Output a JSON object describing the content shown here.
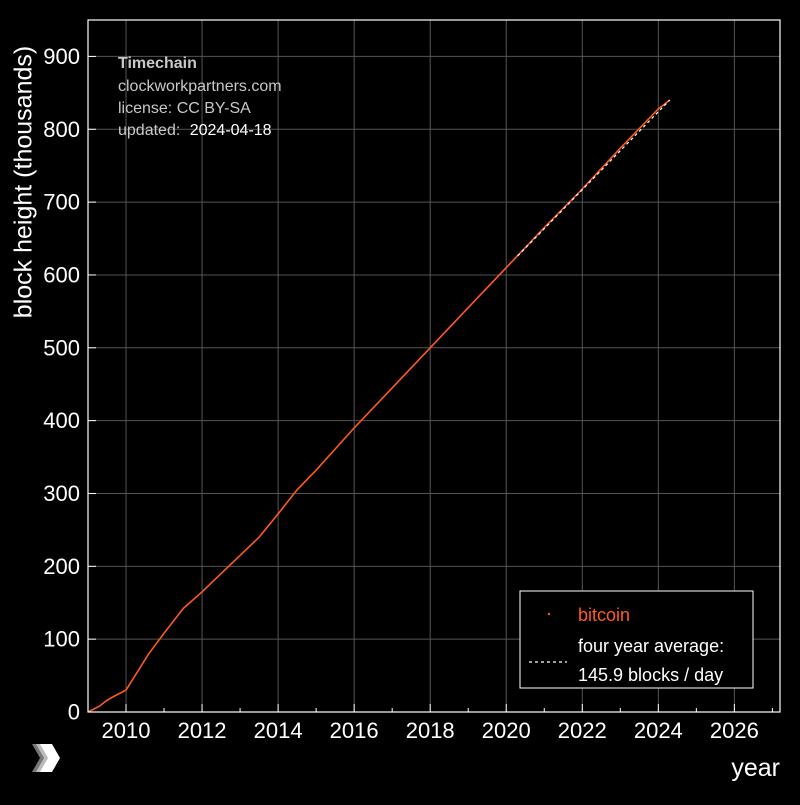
{
  "chart_data": {
    "type": "line",
    "title": "Timechain",
    "xlabel": "year",
    "ylabel": "block height (thousands)",
    "xlim": [
      2009.0,
      2027.2
    ],
    "ylim": [
      0,
      950
    ],
    "x_ticks": [
      2010,
      2012,
      2014,
      2016,
      2018,
      2020,
      2022,
      2024,
      2026
    ],
    "y_ticks": [
      0,
      100,
      200,
      300,
      400,
      500,
      600,
      700,
      800,
      900
    ],
    "grid": true,
    "info": {
      "title": "Timechain",
      "website": "clockworkpartners.com",
      "license": "license: CC BY-SA",
      "updated_label": "updated:",
      "updated_value": "2024-04-18"
    },
    "series": [
      {
        "name": "bitcoin",
        "color": "#ff5a1f",
        "x": [
          2009.0,
          2009.3,
          2009.5,
          2009.7,
          2010.0,
          2010.3,
          2010.6,
          2011.0,
          2011.5,
          2012.0,
          2012.5,
          2013.0,
          2013.5,
          2014.0,
          2014.5,
          2015.0,
          2016.0,
          2017.0,
          2018.0,
          2019.0,
          2020.0,
          2021.0,
          2022.0,
          2023.0,
          2024.0,
          2024.3
        ],
        "values": [
          0,
          8,
          16,
          22,
          30,
          55,
          80,
          108,
          142,
          165,
          190,
          215,
          240,
          272,
          305,
          332,
          390,
          445,
          500,
          555,
          610,
          665,
          718,
          774,
          828,
          840
        ]
      },
      {
        "name": "four year average",
        "color": "#ffffff",
        "dashed": true,
        "x": [
          2020.3,
          2024.3
        ],
        "values": [
          626,
          840
        ]
      }
    ],
    "legend": {
      "position": "bottom-right",
      "series_label": "bitcoin",
      "avg_label_line1": "four year average:",
      "avg_label_line2": "145.9 blocks / day"
    },
    "colors": {
      "background": "#000000",
      "grid": "#555555",
      "frame": "#ffffff",
      "text": "#ffffff",
      "info_text": "#c8c8c8",
      "bitcoin": "#ff5a1f"
    }
  }
}
